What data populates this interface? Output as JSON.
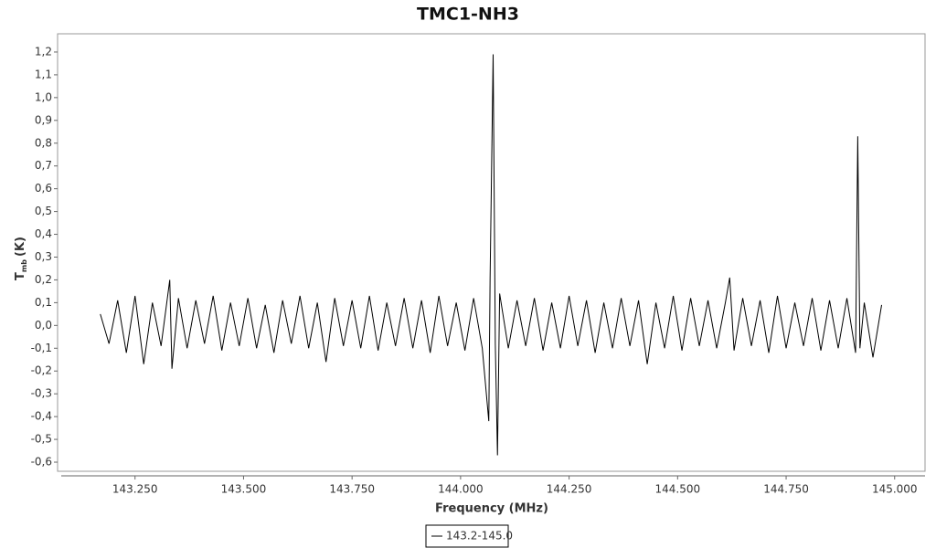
{
  "chart_data": {
    "type": "line",
    "title": "TMC1-NH3",
    "ylabel": "T",
    "ylabel_sub": "mb",
    "ylabel_unit": "(K)",
    "xlabel": "Frequency (MHz)",
    "xlim": [
      143.08,
      145.07
    ],
    "ylim": [
      -0.64,
      1.28
    ],
    "xticks": [
      {
        "value": 143.25,
        "label": "143.250"
      },
      {
        "value": 143.5,
        "label": "143.500"
      },
      {
        "value": 143.75,
        "label": "143.750"
      },
      {
        "value": 144.0,
        "label": "144.000"
      },
      {
        "value": 144.25,
        "label": "144.250"
      },
      {
        "value": 144.5,
        "label": "144.500"
      },
      {
        "value": 144.75,
        "label": "144.750"
      },
      {
        "value": 145.0,
        "label": "145.000"
      }
    ],
    "yticks": [
      {
        "value": -0.6,
        "label": "-0,6"
      },
      {
        "value": -0.5,
        "label": "-0,5"
      },
      {
        "value": -0.4,
        "label": "-0,4"
      },
      {
        "value": -0.3,
        "label": "-0,3"
      },
      {
        "value": -0.2,
        "label": "-0,2"
      },
      {
        "value": -0.1,
        "label": "-0,1"
      },
      {
        "value": 0,
        "label": "0,0"
      },
      {
        "value": 0.1,
        "label": "0,1"
      },
      {
        "value": 0.2,
        "label": "0,2"
      },
      {
        "value": 0.3,
        "label": "0,3"
      },
      {
        "value": 0.4,
        "label": "0,4"
      },
      {
        "value": 0.5,
        "label": "0,5"
      },
      {
        "value": 0.6,
        "label": "0,6"
      },
      {
        "value": 0.7,
        "label": "0,7"
      },
      {
        "value": 0.8,
        "label": "0,8"
      },
      {
        "value": 0.9,
        "label": "0,9"
      },
      {
        "value": 1.0,
        "label": "1,0"
      },
      {
        "value": 1.1,
        "label": "1,1"
      },
      {
        "value": 1.2,
        "label": "1,2"
      }
    ],
    "grid": false,
    "legend": "bottom",
    "series": [
      {
        "name": "143.2-145.0",
        "color": "#000000",
        "x": [
          143.17,
          143.19,
          143.21,
          143.23,
          143.25,
          143.27,
          143.29,
          143.31,
          143.33,
          143.335,
          143.35,
          143.37,
          143.39,
          143.41,
          143.43,
          143.45,
          143.47,
          143.49,
          143.51,
          143.53,
          143.55,
          143.57,
          143.59,
          143.61,
          143.63,
          143.65,
          143.67,
          143.69,
          143.71,
          143.73,
          143.75,
          143.77,
          143.79,
          143.81,
          143.83,
          143.85,
          143.87,
          143.89,
          143.91,
          143.93,
          143.95,
          143.97,
          143.99,
          144.01,
          144.03,
          144.05,
          144.065,
          144.068,
          144.075,
          144.08,
          144.085,
          144.09,
          144.11,
          144.13,
          144.15,
          144.17,
          144.19,
          144.21,
          144.23,
          144.25,
          144.27,
          144.29,
          144.31,
          144.33,
          144.35,
          144.37,
          144.39,
          144.41,
          144.43,
          144.45,
          144.47,
          144.49,
          144.51,
          144.53,
          144.55,
          144.57,
          144.59,
          144.61,
          144.62,
          144.63,
          144.65,
          144.67,
          144.69,
          144.71,
          144.73,
          144.75,
          144.77,
          144.79,
          144.81,
          144.83,
          144.85,
          144.87,
          144.89,
          144.91,
          144.915,
          144.92,
          144.93,
          144.95,
          144.97
        ],
        "values": [
          0.05,
          -0.08,
          0.11,
          -0.12,
          0.13,
          -0.17,
          0.1,
          -0.09,
          0.2,
          -0.19,
          0.12,
          -0.1,
          0.11,
          -0.08,
          0.13,
          -0.11,
          0.1,
          -0.09,
          0.12,
          -0.1,
          0.09,
          -0.12,
          0.11,
          -0.08,
          0.13,
          -0.1,
          0.1,
          -0.16,
          0.12,
          -0.09,
          0.11,
          -0.1,
          0.13,
          -0.11,
          0.1,
          -0.09,
          0.12,
          -0.1,
          0.11,
          -0.12,
          0.13,
          -0.09,
          0.1,
          -0.11,
          0.12,
          -0.1,
          -0.42,
          0.21,
          1.19,
          -0.08,
          -0.57,
          0.14,
          -0.1,
          0.11,
          -0.09,
          0.12,
          -0.11,
          0.1,
          -0.1,
          0.13,
          -0.09,
          0.11,
          -0.12,
          0.1,
          -0.1,
          0.12,
          -0.09,
          0.11,
          -0.17,
          0.1,
          -0.1,
          0.13,
          -0.11,
          0.12,
          -0.09,
          0.11,
          -0.1,
          0.1,
          0.21,
          -0.11,
          0.12,
          -0.09,
          0.11,
          -0.12,
          0.13,
          -0.1,
          0.1,
          -0.09,
          0.12,
          -0.11,
          0.11,
          -0.1,
          0.12,
          -0.12,
          0.83,
          -0.1,
          0.1,
          -0.14,
          0.09
        ]
      }
    ]
  }
}
